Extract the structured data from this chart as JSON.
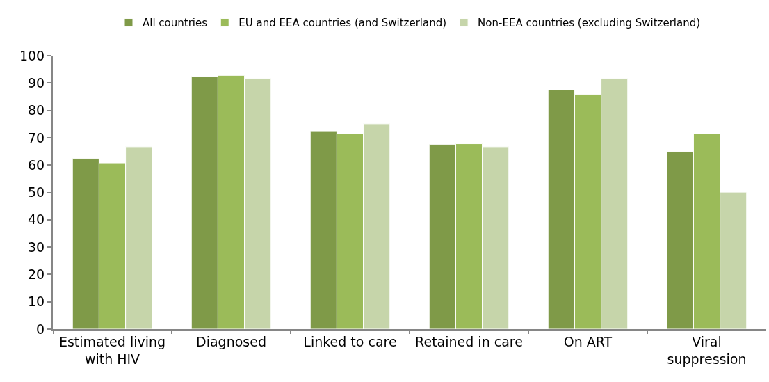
{
  "chart_data": {
    "type": "bar",
    "categories": [
      "Estimated living with HIV",
      "Diagnosed",
      "Linked to care",
      "Retained in care",
      "On ART",
      "Viral suppression"
    ],
    "series": [
      {
        "name": "All countries",
        "color": "#7f9a48",
        "values": [
          62.5,
          92.5,
          72.5,
          67.6,
          87.5,
          65.0
        ]
      },
      {
        "name": "EU and EEA countries (and Switzerland)",
        "color": "#9bbb59",
        "values": [
          60.8,
          92.8,
          71.5,
          67.8,
          85.8,
          71.5
        ]
      },
      {
        "name": "Non-EEA countries (excluding Switzerland)",
        "color": "#c6d5aa",
        "values": [
          66.7,
          91.7,
          75.1,
          66.7,
          91.7,
          50.1
        ]
      }
    ],
    "ylim": [
      0,
      100
    ],
    "yticks": [
      0,
      10,
      20,
      30,
      40,
      50,
      60,
      70,
      80,
      90,
      100
    ],
    "grid": false,
    "legend": "top"
  }
}
